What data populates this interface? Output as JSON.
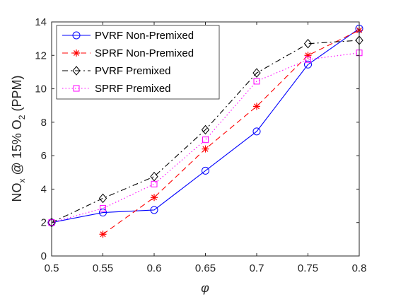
{
  "chart_data": {
    "type": "line",
    "x": [
      0.5,
      0.55,
      0.6,
      0.65,
      0.7,
      0.75,
      0.8
    ],
    "x_tick_labels": [
      "0.5",
      "0.55",
      "0.6",
      "0.65",
      "0.7",
      "0.75",
      "0.8"
    ],
    "xlim": [
      0.5,
      0.8
    ],
    "ylim": [
      0,
      14
    ],
    "y_ticks": [
      0,
      2,
      4,
      6,
      8,
      10,
      12,
      14
    ],
    "y_tick_labels": [
      "0",
      "2",
      "4",
      "6",
      "8",
      "10",
      "12",
      "14"
    ],
    "xlabel": "φ",
    "ylabel_parts": [
      "NO",
      "x",
      " @ 15% O",
      "2",
      " (PPM)"
    ],
    "grid": false,
    "legend_position": "top-left",
    "series": [
      {
        "name": "PVRF Non-Premixed",
        "color": "#0000ff",
        "line_style": "solid",
        "marker": "circle",
        "x": [
          0.5,
          0.55,
          0.6,
          0.65,
          0.7,
          0.75,
          0.8
        ],
        "values": [
          2.0,
          2.6,
          2.75,
          5.1,
          7.45,
          11.45,
          13.6
        ]
      },
      {
        "name": "SPRF Non-Premixed",
        "color": "#ff0000",
        "line_style": "dashed",
        "marker": "asterisk",
        "x": [
          0.55,
          0.6,
          0.65,
          0.7,
          0.75,
          0.8
        ],
        "values": [
          1.3,
          3.5,
          6.4,
          8.95,
          12.0,
          13.5
        ]
      },
      {
        "name": "PVRF Premixed",
        "color": "#000000",
        "line_style": "dashdot",
        "marker": "diamond",
        "x": [
          0.5,
          0.55,
          0.6,
          0.65,
          0.7,
          0.75,
          0.8
        ],
        "values": [
          2.0,
          3.45,
          4.75,
          7.55,
          10.95,
          12.7,
          12.9
        ]
      },
      {
        "name": "SPRF Premixed",
        "color": "#ff00ff",
        "line_style": "dotted",
        "marker": "square",
        "x": [
          0.5,
          0.55,
          0.6,
          0.65,
          0.7,
          0.75,
          0.8
        ],
        "values": [
          2.0,
          2.85,
          4.3,
          6.95,
          10.45,
          11.75,
          12.15
        ]
      }
    ]
  }
}
